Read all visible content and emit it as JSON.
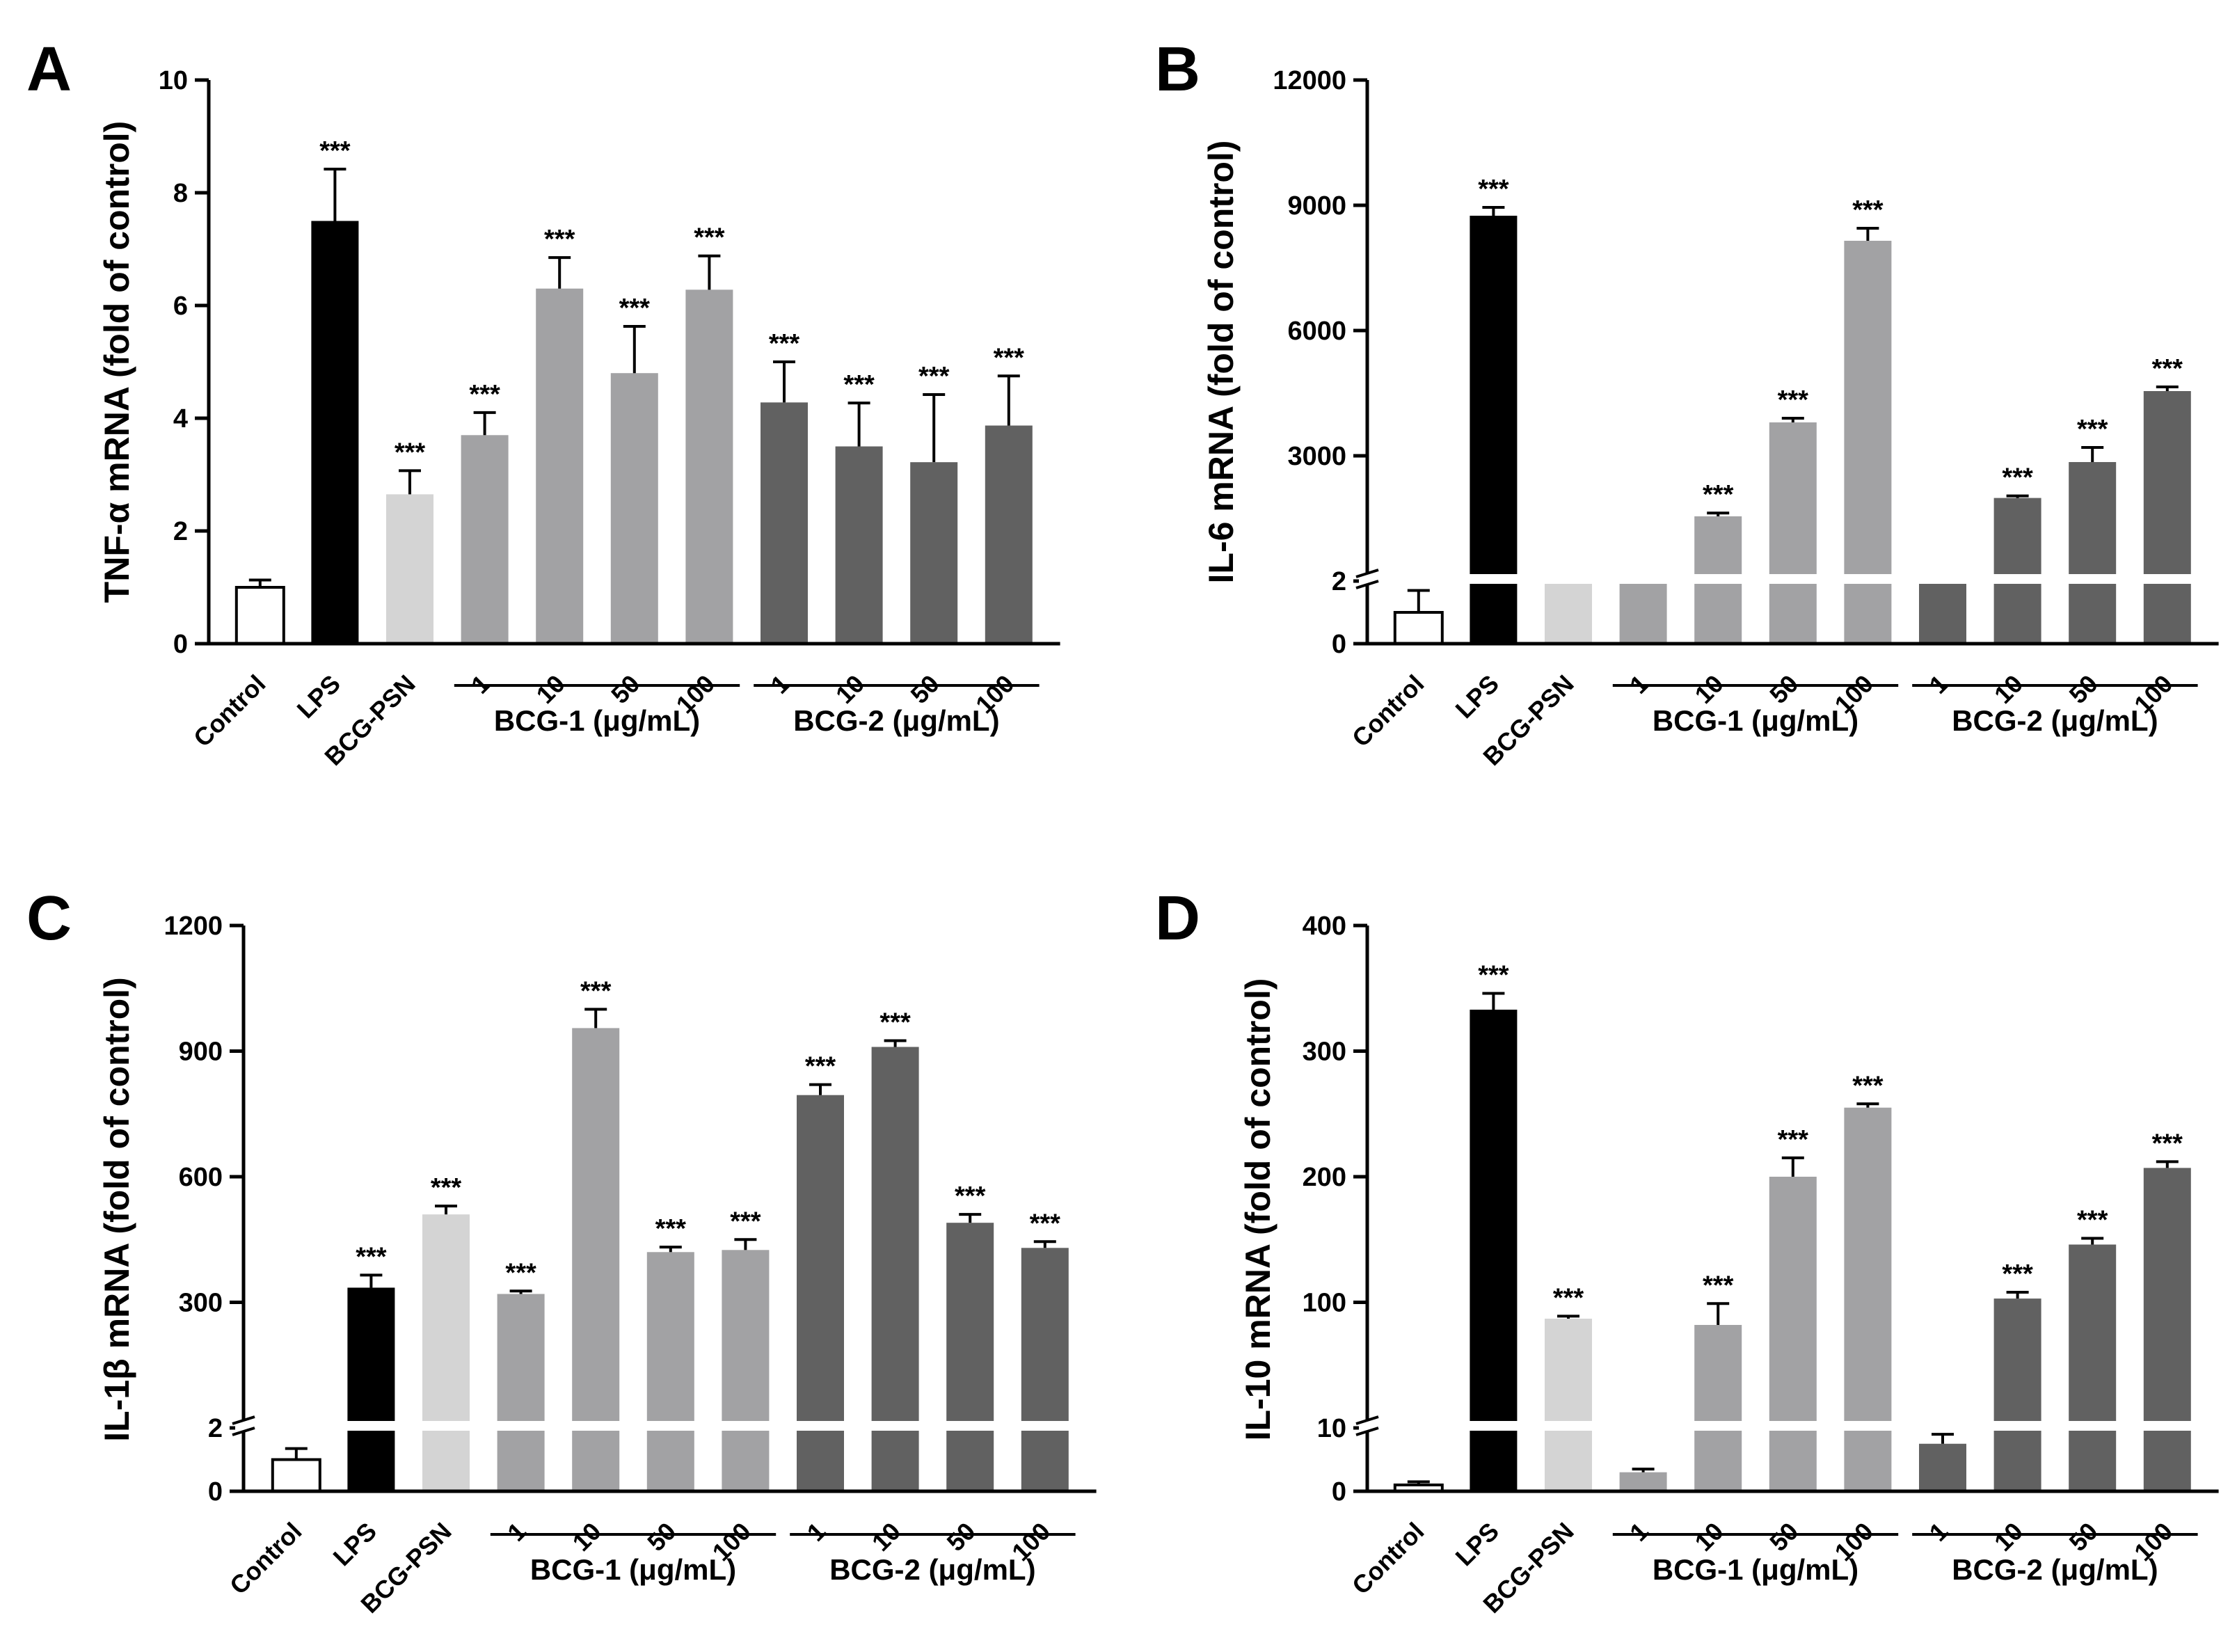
{
  "figure": {
    "groups": {
      "bcg1": "BCG-1 (μg/mL)",
      "bcg2": "BCG-2 (μg/mL)"
    },
    "significance_label": "***",
    "colors": {
      "Control": "#ffffff",
      "LPS": "#000000",
      "BCG-PSN": "#d4d4d4",
      "BCG-1": "#a2a2a4",
      "BCG-2": "#616161",
      "axis": "#000000"
    }
  },
  "chart_data": [
    {
      "panel": "A",
      "type": "bar",
      "ylabel": "TNF-α mRNA (fold of control)",
      "ylim": [
        0,
        10
      ],
      "yticks": [
        0,
        2,
        4,
        6,
        8,
        10
      ],
      "broken_axis": false,
      "categories": [
        "Control",
        "LPS",
        "BCG-PSN",
        "1",
        "10",
        "50",
        "100",
        "1",
        "10",
        "50",
        "100"
      ],
      "values": [
        1.0,
        7.5,
        2.65,
        3.7,
        6.3,
        4.8,
        6.28,
        4.28,
        3.5,
        3.22,
        3.87
      ],
      "errors": [
        0.13,
        0.92,
        0.42,
        0.4,
        0.55,
        0.83,
        0.6,
        0.72,
        0.77,
        1.2,
        0.88
      ],
      "significance": [
        "",
        "***",
        "***",
        "***",
        "***",
        "***",
        "***",
        "***",
        "***",
        "***",
        "***"
      ]
    },
    {
      "panel": "B",
      "type": "bar",
      "ylabel": "IL-6 mRNA (fold of control)",
      "broken_axis": true,
      "lower_yticks": [
        0,
        2
      ],
      "upper_yticks": [
        3000,
        6000,
        9000,
        12000
      ],
      "categories": [
        "Control",
        "LPS",
        "BCG-PSN",
        "1",
        "10",
        "50",
        "100",
        "1",
        "10",
        "50",
        "100"
      ],
      "values": [
        1.0,
        8750,
        2.5,
        2.3,
        1550,
        3800,
        8150,
        2.45,
        1990,
        2850,
        4550
      ],
      "errors": [
        0.7,
        200,
        0,
        0,
        80,
        100,
        300,
        0,
        50,
        350,
        100
      ],
      "significance": [
        "",
        "***",
        "",
        "",
        "***",
        "***",
        "***",
        "",
        "***",
        "***",
        "***"
      ]
    },
    {
      "panel": "C",
      "type": "bar",
      "ylabel": "IL-1β mRNA (fold of control)",
      "broken_axis": true,
      "lower_yticks": [
        0,
        2
      ],
      "upper_yticks": [
        300,
        600,
        900,
        1200
      ],
      "categories": [
        "Control",
        "LPS",
        "BCG-PSN",
        "1",
        "10",
        "50",
        "100",
        "1",
        "10",
        "50",
        "100"
      ],
      "values": [
        1.0,
        335,
        510,
        320,
        955,
        420,
        425,
        795,
        910,
        490,
        430
      ],
      "errors": [
        0.35,
        30,
        20,
        7,
        45,
        12,
        25,
        25,
        15,
        20,
        15
      ],
      "significance": [
        "",
        "***",
        "***",
        "***",
        "***",
        "***",
        "***",
        "***",
        "***",
        "***",
        "***"
      ]
    },
    {
      "panel": "D",
      "type": "bar",
      "ylabel": "IL-10 mRNA (fold of control)",
      "broken_axis": true,
      "lower_yticks": [
        0,
        10
      ],
      "upper_yticks": [
        100,
        200,
        300,
        400
      ],
      "categories": [
        "Control",
        "LPS",
        "BCG-PSN",
        "1",
        "10",
        "50",
        "100",
        "1",
        "10",
        "50",
        "100"
      ],
      "values": [
        1.0,
        333,
        87,
        3.0,
        82,
        200,
        255,
        7.5,
        103,
        146,
        207
      ],
      "errors": [
        0.5,
        13,
        2,
        0.5,
        17,
        15,
        3,
        1.5,
        5,
        5,
        5
      ],
      "significance": [
        "",
        "***",
        "***",
        "",
        "***",
        "***",
        "***",
        "",
        "***",
        "***",
        "***"
      ]
    }
  ]
}
